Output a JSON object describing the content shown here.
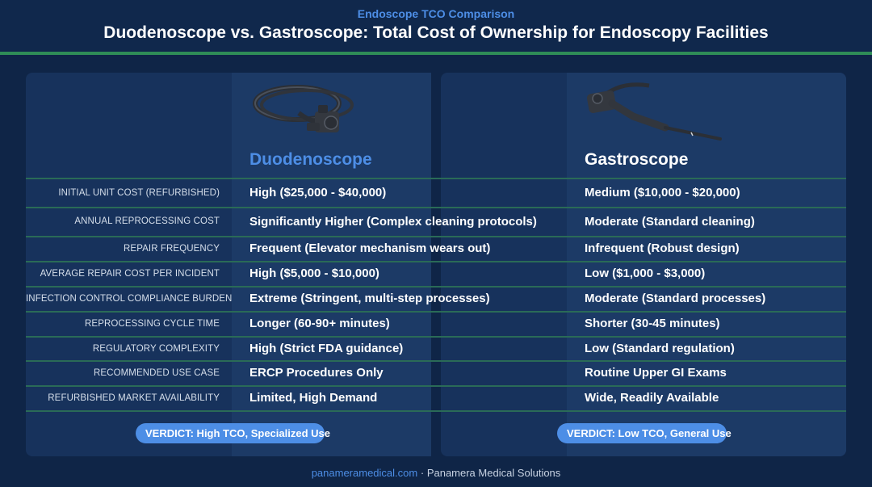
{
  "header": {
    "subtitle": "Endoscope TCO Comparison",
    "title": "Duodenoscope vs. Gastroscope: Total Cost of Ownership for Endoscopy Facilities"
  },
  "columns": {
    "duodenoscope": {
      "name": "Duodenoscope",
      "accent": "#4d8ee6",
      "image": "duodenoscope-image"
    },
    "gastroscope": {
      "name": "Gastroscope",
      "accent": "#ffffff",
      "image": "gastroscope-image"
    }
  },
  "rows": [
    {
      "label": "INITIAL UNIT COST (REFURBISHED)",
      "duodenoscope": "High ($25,000 - $40,000)",
      "gastroscope": "Medium ($10,000 - $20,000)"
    },
    {
      "label": "ANNUAL REPROCESSING COST",
      "duodenoscope": "Significantly Higher (Complex cleaning protocols)",
      "gastroscope": "Moderate (Standard cleaning)"
    },
    {
      "label": "REPAIR FREQUENCY",
      "duodenoscope": "Frequent (Elevator mechanism wears out)",
      "gastroscope": "Infrequent (Robust design)"
    },
    {
      "label": "AVERAGE REPAIR COST PER INCIDENT",
      "duodenoscope": "High ($5,000 - $10,000)",
      "gastroscope": "Low ($1,000 - $3,000)"
    },
    {
      "label": "INFECTION CONTROL COMPLIANCE BURDEN",
      "duodenoscope": "Extreme (Stringent, multi-step processes)",
      "gastroscope": "Moderate (Standard processes)"
    },
    {
      "label": "REPROCESSING CYCLE TIME",
      "duodenoscope": "Longer (60-90+ minutes)",
      "gastroscope": "Shorter (30-45 minutes)"
    },
    {
      "label": "REGULATORY COMPLEXITY",
      "duodenoscope": "High (Strict FDA guidance)",
      "gastroscope": "Low (Standard regulation)"
    },
    {
      "label": "RECOMMENDED USE CASE",
      "duodenoscope": "ERCP Procedures Only",
      "gastroscope": "Routine Upper GI Exams"
    },
    {
      "label": "REFURBISHED MARKET AVAILABILITY",
      "duodenoscope": "Limited, High Demand",
      "gastroscope": "Wide, Readily Available"
    }
  ],
  "verdicts": {
    "duodenoscope": "VERDICT: High TCO, Specialized Use",
    "gastroscope": "VERDICT: Low TCO, General Use"
  },
  "footer": {
    "site": "panameramedical.com",
    "separator": "·",
    "company": "Panamera Medical Solutions"
  },
  "colors": {
    "background": "#0f2547",
    "panel": "#17325c",
    "accent_blue": "#4d8ee6",
    "rule_green": "#2f8d57"
  }
}
